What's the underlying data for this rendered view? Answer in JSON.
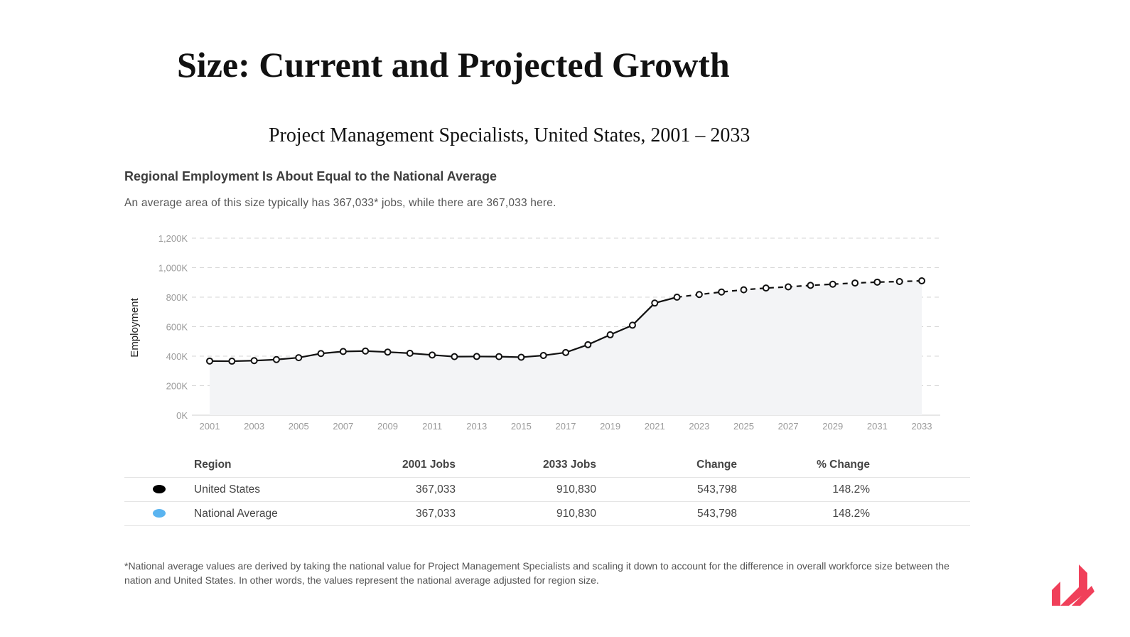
{
  "slide": {
    "title": "Size: Current and Projected Growth",
    "subtitle": "Project Management Specialists, United States, 2001 – 2033"
  },
  "panel": {
    "heading": "Regional Employment Is About Equal to the National Average",
    "description": "An average area of this size typically has 367,033* jobs, while there are 367,033 here."
  },
  "chart_data": {
    "type": "line",
    "ylabel": "Employment",
    "xlabel": "",
    "ylim": [
      0,
      1200000
    ],
    "y_ticks": [
      0,
      200000,
      400000,
      600000,
      800000,
      1000000,
      1200000
    ],
    "y_tick_labels": [
      "0K",
      "200K",
      "400K",
      "600K",
      "800K",
      "1,000K",
      "1,200K"
    ],
    "x_tick_labels": [
      "2001",
      "2003",
      "2005",
      "2007",
      "2009",
      "2011",
      "2013",
      "2015",
      "2017",
      "2019",
      "2021",
      "2023",
      "2025",
      "2027",
      "2029",
      "2031",
      "2033"
    ],
    "grid": true,
    "projection_starts": 2022,
    "x": [
      2001,
      2002,
      2003,
      2004,
      2005,
      2006,
      2007,
      2008,
      2009,
      2010,
      2011,
      2012,
      2013,
      2014,
      2015,
      2016,
      2017,
      2018,
      2019,
      2020,
      2021,
      2022,
      2023,
      2024,
      2025,
      2026,
      2027,
      2028,
      2029,
      2030,
      2031,
      2032,
      2033
    ],
    "series": [
      {
        "name": "United States",
        "color": "#111111",
        "values": [
          367033,
          366000,
          370000,
          377000,
          390000,
          418000,
          432000,
          435000,
          428000,
          420000,
          408000,
          397000,
          398000,
          397000,
          393000,
          405000,
          425000,
          478000,
          545000,
          610000,
          760000,
          800000,
          818000,
          835000,
          850000,
          862000,
          870000,
          880000,
          888000,
          896000,
          902000,
          906000,
          910830
        ]
      }
    ]
  },
  "table": {
    "headers": [
      "Region",
      "2001 Jobs",
      "2033 Jobs",
      "Change",
      "% Change"
    ],
    "rows": [
      {
        "color": "#000000",
        "region": "United States",
        "jobs_2001": "367,033",
        "jobs_2033": "910,830",
        "change": "543,798",
        "pct_change": "148.2%"
      },
      {
        "color": "#5ab4f0",
        "region": "National Average",
        "jobs_2001": "367,033",
        "jobs_2033": "910,830",
        "change": "543,798",
        "pct_change": "148.2%"
      }
    ]
  },
  "footnote": "*National average values are derived by taking the national value for Project Management Specialists and scaling it down to account for the difference in overall workforce size between the nation and United States. In other words, the values represent the national average adjusted for region size.",
  "logo": {
    "icon": "brand-logo-icon",
    "color": "#f0405a"
  }
}
